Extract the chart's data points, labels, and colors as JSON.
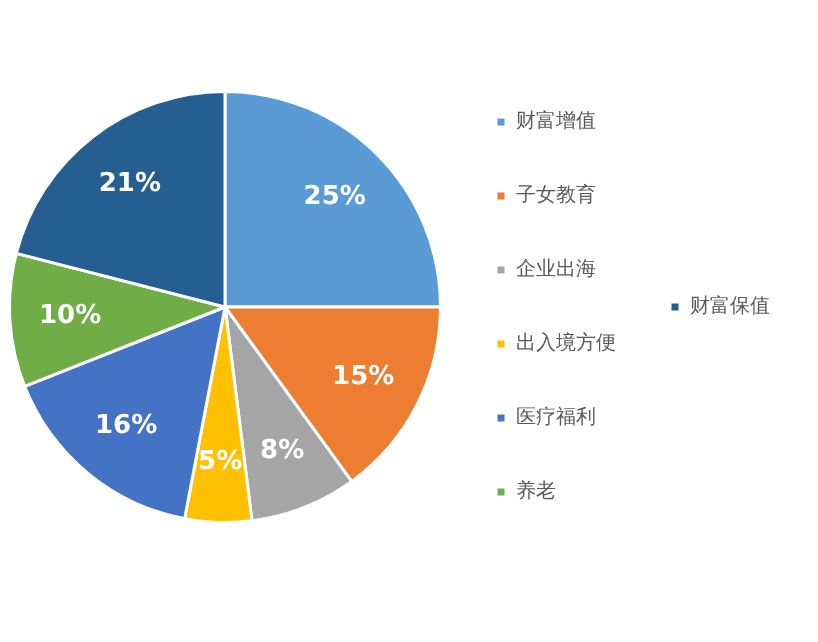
{
  "chart_data": {
    "type": "pie",
    "categories": [
      "财富增值",
      "子女教育",
      "企业出海",
      "出入境方便",
      "医疗福利",
      "养老",
      "财富保值"
    ],
    "values": [
      25,
      15,
      8,
      5,
      16,
      10,
      21
    ],
    "colors": [
      "#5b9bd5",
      "#ed7d31",
      "#a5a5a5",
      "#ffc000",
      "#4472c4",
      "#70ad47",
      "#255e91"
    ],
    "value_labels": [
      "25%",
      "15%",
      "8%",
      "5%",
      "16%",
      "10%",
      "21%"
    ],
    "legend": "right"
  }
}
